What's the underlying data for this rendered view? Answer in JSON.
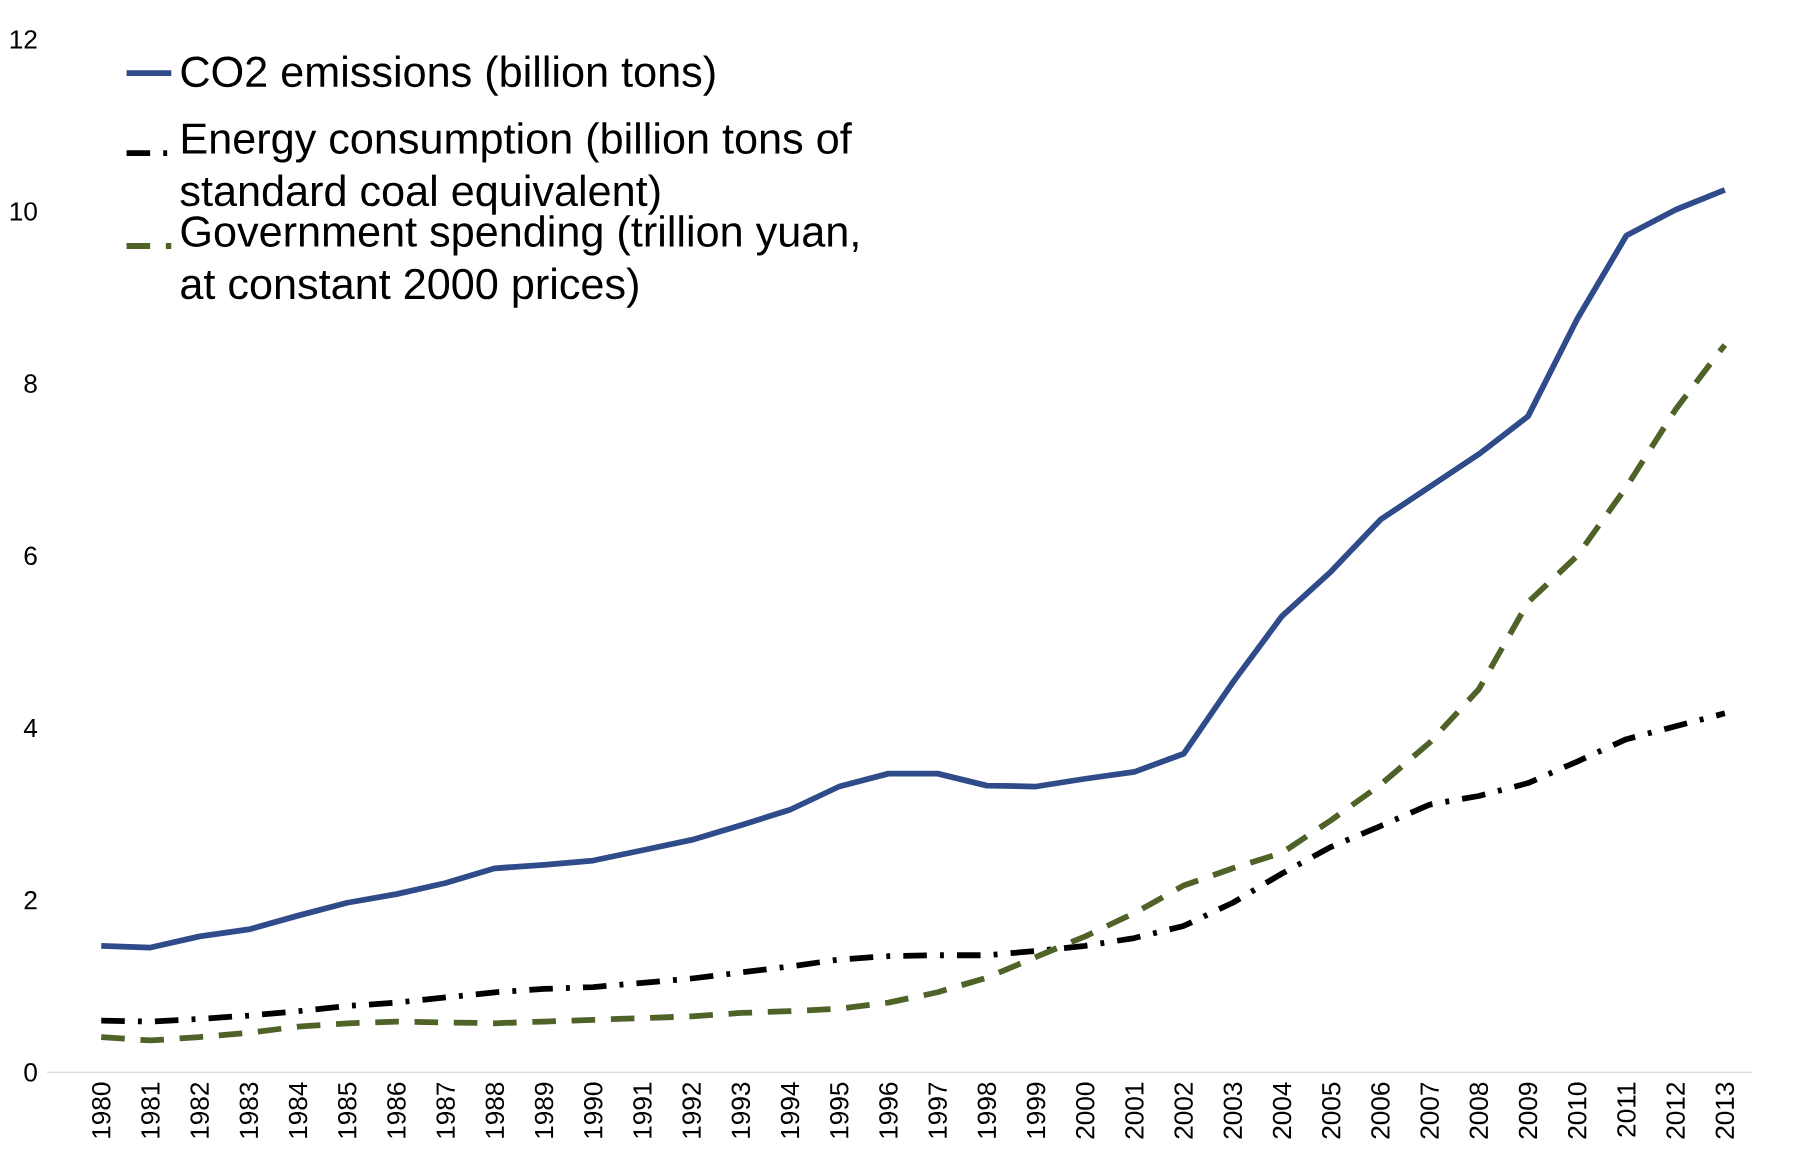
{
  "chart_data": {
    "type": "line",
    "categories": [
      "1980",
      "1981",
      "1982",
      "1983",
      "1984",
      "1985",
      "1986",
      "1987",
      "1988",
      "1989",
      "1990",
      "1991",
      "1992",
      "1993",
      "1994",
      "1995",
      "1996",
      "1997",
      "1998",
      "1999",
      "2000",
      "2001",
      "2002",
      "2003",
      "2004",
      "2005",
      "2006",
      "2007",
      "2008",
      "2009",
      "2010",
      "2011",
      "2012",
      "2013"
    ],
    "series": [
      {
        "name": "CO2 emissions (billion tons)",
        "color": "#2f4b8a",
        "line_style": "solid",
        "values": [
          1.47,
          1.45,
          1.58,
          1.66,
          1.82,
          1.97,
          2.07,
          2.2,
          2.37,
          2.41,
          2.46,
          2.58,
          2.7,
          2.87,
          3.05,
          3.32,
          3.47,
          3.47,
          3.33,
          3.32,
          3.41,
          3.49,
          3.7,
          4.53,
          5.3,
          5.82,
          6.42,
          6.8,
          7.18,
          7.62,
          8.75,
          9.72,
          10.02,
          10.25
        ]
      },
      {
        "name": "Energy consumption (billion tons of standard coal equivalent)",
        "color": "#000000",
        "line_style": "dashdot",
        "values": [
          0.6,
          0.59,
          0.62,
          0.66,
          0.71,
          0.77,
          0.81,
          0.87,
          0.93,
          0.97,
          0.99,
          1.04,
          1.09,
          1.16,
          1.23,
          1.31,
          1.35,
          1.36,
          1.36,
          1.41,
          1.47,
          1.56,
          1.7,
          1.97,
          2.31,
          2.62,
          2.86,
          3.11,
          3.21,
          3.36,
          3.61,
          3.87,
          4.02,
          4.17
        ]
      },
      {
        "name": "Government spending (trillion yuan, at constant 2000 prices)",
        "color": "#4f6228",
        "line_style": "dashed",
        "values": [
          0.41,
          0.37,
          0.41,
          0.46,
          0.53,
          0.57,
          0.59,
          0.58,
          0.57,
          0.59,
          0.61,
          0.63,
          0.65,
          0.69,
          0.71,
          0.74,
          0.81,
          0.93,
          1.1,
          1.34,
          1.58,
          1.85,
          2.17,
          2.37,
          2.55,
          2.93,
          3.34,
          3.83,
          4.45,
          5.46,
          6.0,
          6.8,
          7.7,
          8.45
        ]
      }
    ],
    "ylim": [
      0,
      12
    ],
    "yticks": [
      0,
      2,
      4,
      6,
      8,
      10,
      12
    ],
    "legend": "top left"
  }
}
